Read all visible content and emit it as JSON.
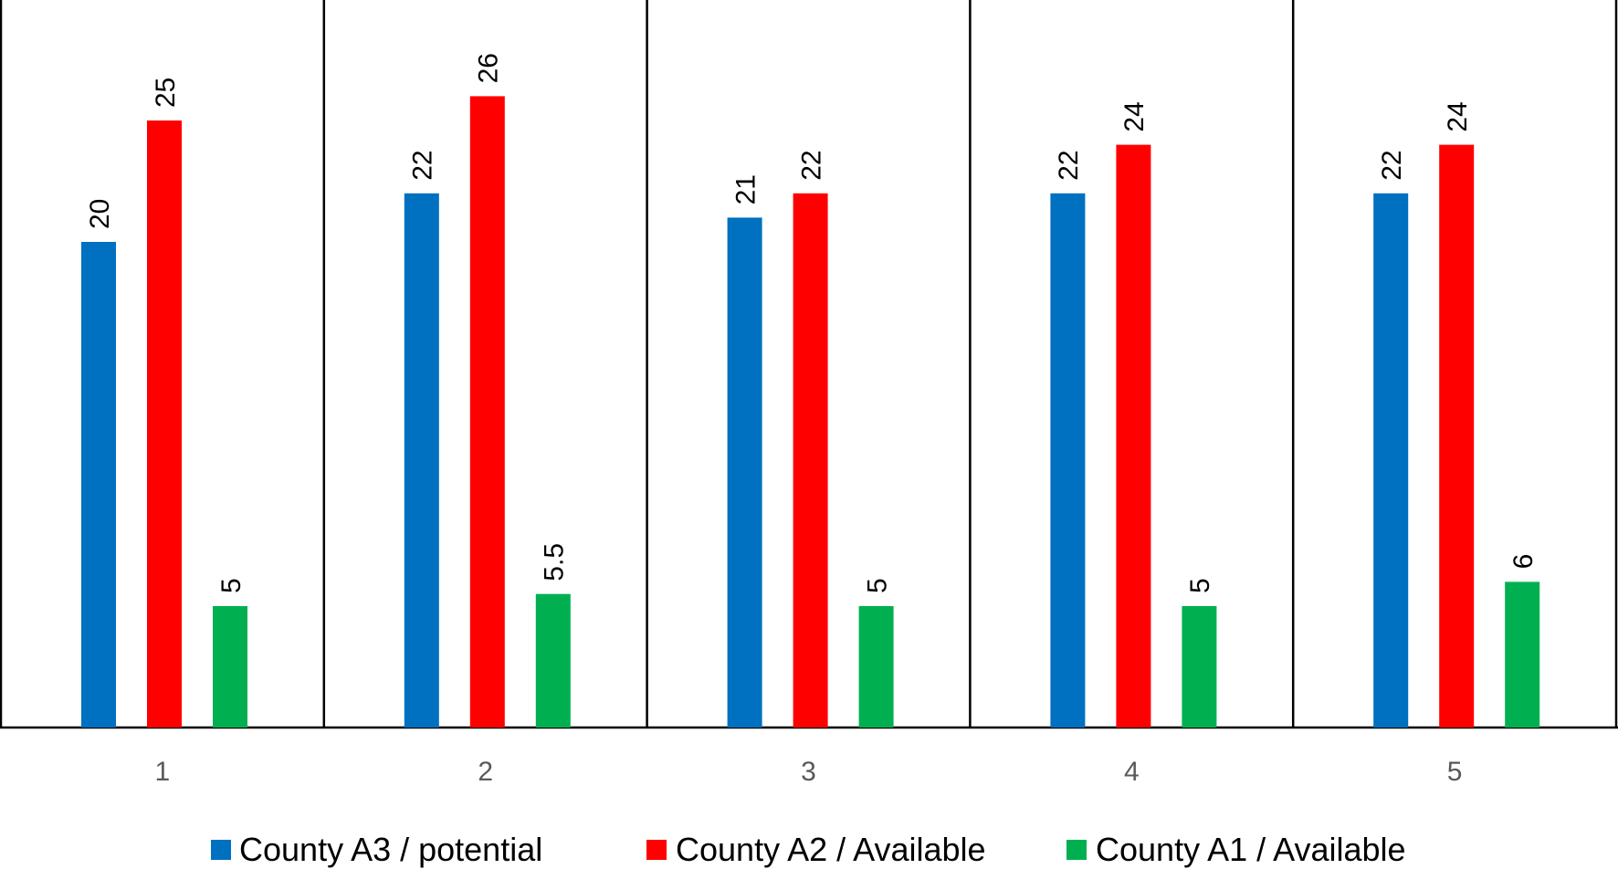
{
  "chart_data": {
    "type": "bar",
    "title": "",
    "xlabel": "",
    "ylabel": "",
    "ylim": [
      0,
      30
    ],
    "grid": false,
    "legend_position": "bottom",
    "categories": [
      "1",
      "2",
      "3",
      "4",
      "5"
    ],
    "series": [
      {
        "name": "County   A3 / potential",
        "color": "#0070C0",
        "values": [
          20,
          22,
          21,
          22,
          22
        ],
        "labels": [
          "20",
          "22",
          "21",
          "22",
          "22"
        ]
      },
      {
        "name": "County A2 / Available",
        "color": "#FF0000",
        "values": [
          25,
          26,
          22,
          24,
          24
        ],
        "labels": [
          "25",
          "26",
          "22",
          "24",
          "24"
        ]
      },
      {
        "name": "County A1 / Available",
        "color": "#00B050",
        "values": [
          5,
          5.5,
          5,
          5,
          6
        ],
        "labels": [
          "5",
          "5.5",
          "5",
          "5",
          "6"
        ]
      }
    ]
  }
}
